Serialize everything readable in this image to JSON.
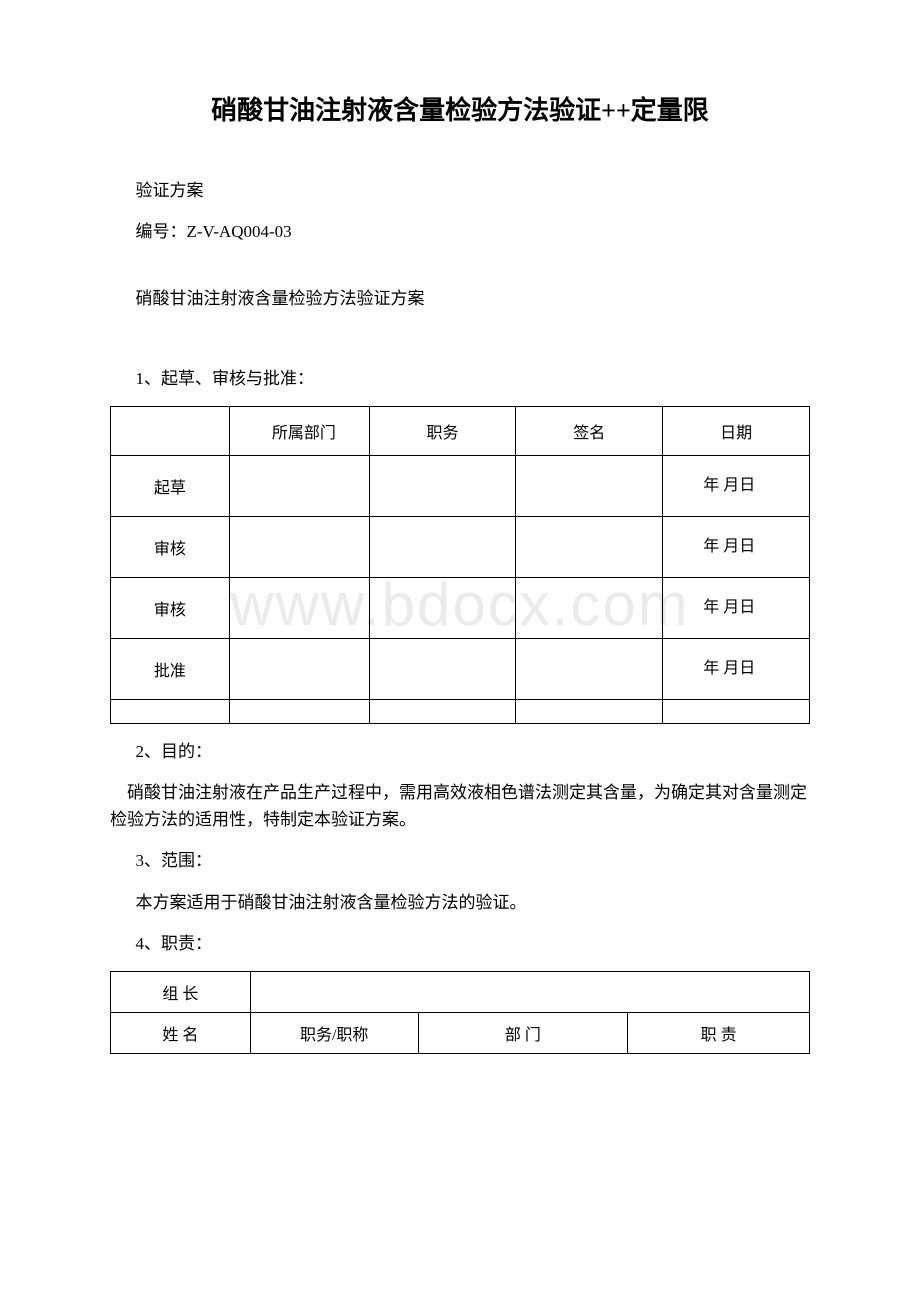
{
  "title": "硝酸甘油注射液含量检验方法验证++定量限",
  "subtitle1": "验证方案",
  "docnum": " 编号：Z-V-AQ004-03",
  "subtitle2": "硝酸甘油注射液含量检验方法验证方案",
  "section1_heading": "1、起草、审核与批准：",
  "table1": {
    "header": {
      "dept": "　　所属部门",
      "position": "职务",
      "signature": "签名",
      "date": "日期"
    },
    "rows": [
      {
        "label": "起草",
        "date": "　　年 月日"
      },
      {
        "label": "审核",
        "date": "　　年 月日"
      },
      {
        "label": "审核",
        "date": "　　年 月日"
      },
      {
        "label": "批准",
        "date": "　　年 月日"
      }
    ]
  },
  "section2_heading": "2、目的：",
  "section2_body": "　硝酸甘油注射液在产品生产过程中，需用高效液相色谱法测定其含量，为确定其对含量测定检验方法的适用性，特制定本验证方案。",
  "section3_heading": "3、范围：",
  "section3_body": "本方案适用于硝酸甘油注射液含量检验方法的验证。",
  "section4_heading": "4、职责：",
  "table2": {
    "row1_label": "组 长",
    "header": {
      "name": "姓 名",
      "title": "职务/职称",
      "dept": "部 门",
      "resp": "职 责"
    }
  },
  "watermark": "www.bdocx.com"
}
